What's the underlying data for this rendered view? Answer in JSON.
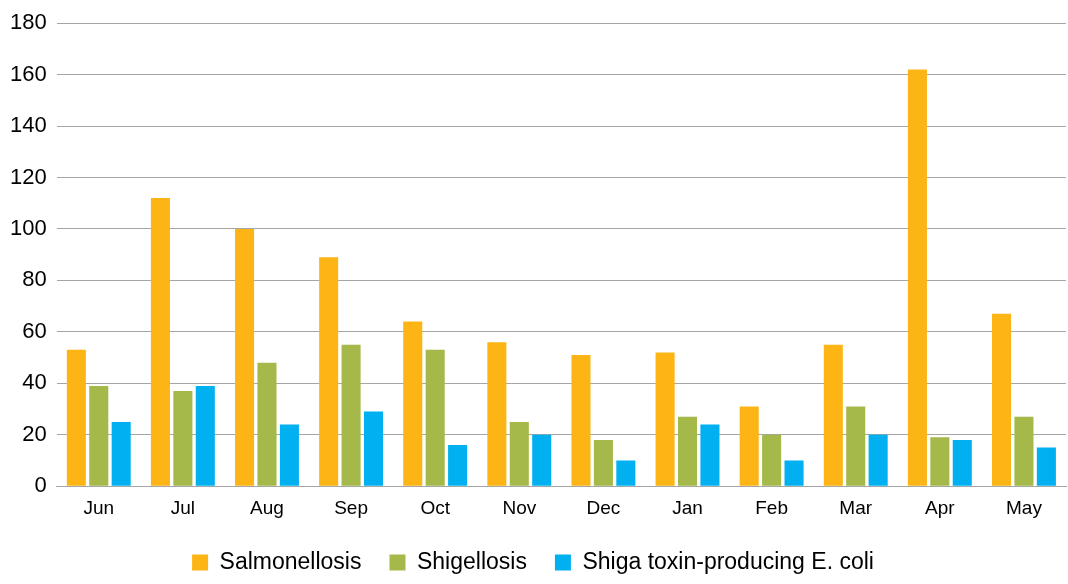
{
  "chart_data": {
    "type": "bar",
    "categories": [
      "Jun",
      "Jul",
      "Aug",
      "Sep",
      "Oct",
      "Nov",
      "Dec",
      "Jan",
      "Feb",
      "Mar",
      "Apr",
      "May"
    ],
    "series": [
      {
        "name": "Salmonellosis",
        "color": "#fdb515",
        "values": [
          53,
          112,
          100,
          89,
          64,
          56,
          51,
          52,
          31,
          55,
          162,
          67
        ]
      },
      {
        "name": "Shigellosis",
        "color": "#a5b94a",
        "values": [
          39,
          37,
          48,
          55,
          53,
          25,
          18,
          27,
          20,
          31,
          19,
          27
        ]
      },
      {
        "name": "Shiga toxin-producing E. coli",
        "color": "#00b0f0",
        "values": [
          25,
          39,
          24,
          29,
          16,
          20,
          10,
          24,
          10,
          20,
          18,
          15
        ]
      }
    ],
    "ylim": [
      0,
      180
    ],
    "yticks": [
      0,
      20,
      40,
      60,
      80,
      100,
      120,
      140,
      160,
      180
    ],
    "grid": "y",
    "legend": "bottom"
  }
}
